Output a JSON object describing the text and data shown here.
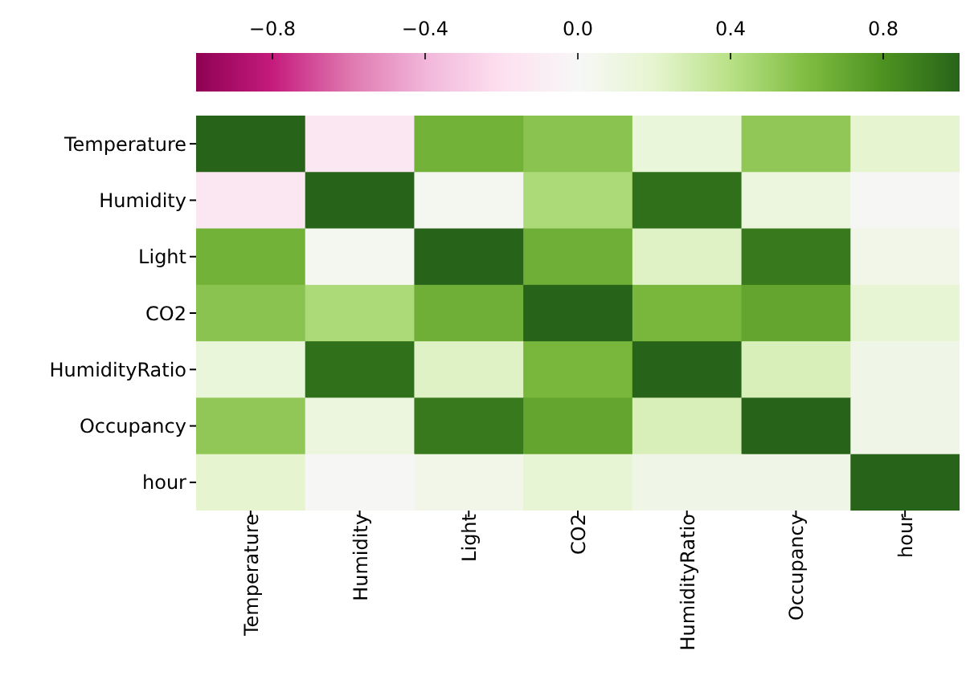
{
  "chart_data": {
    "type": "heatmap",
    "categories": [
      "Temperature",
      "Humidity",
      "Light",
      "CO2",
      "HumidityRatio",
      "Occupancy",
      "hour"
    ],
    "y_categories": [
      "Temperature",
      "Humidity",
      "Light",
      "CO2",
      "HumidityRatio",
      "Occupancy",
      "hour"
    ],
    "cells": [
      [
        1.0,
        -0.14,
        0.65,
        0.56,
        0.15,
        0.54,
        0.2
      ],
      [
        -0.14,
        1.0,
        0.04,
        0.44,
        0.95,
        0.13,
        0.01
      ],
      [
        0.65,
        0.04,
        1.0,
        0.66,
        0.23,
        0.91,
        0.07
      ],
      [
        0.56,
        0.44,
        0.66,
        1.0,
        0.63,
        0.71,
        0.18
      ],
      [
        0.15,
        0.95,
        0.23,
        0.63,
        1.0,
        0.26,
        0.08
      ],
      [
        0.54,
        0.13,
        0.91,
        0.71,
        0.26,
        1.0,
        0.08
      ],
      [
        0.2,
        0.01,
        0.07,
        0.18,
        0.08,
        0.08,
        1.0
      ]
    ],
    "clim": [
      -1,
      1
    ],
    "cticks": [
      {
        "value": -0.8,
        "label": "−0.8"
      },
      {
        "value": -0.4,
        "label": "−0.4"
      },
      {
        "value": 0,
        "label": "0.0"
      },
      {
        "value": 0.4,
        "label": "0.4"
      },
      {
        "value": 0.8,
        "label": "0.8"
      }
    ]
  }
}
